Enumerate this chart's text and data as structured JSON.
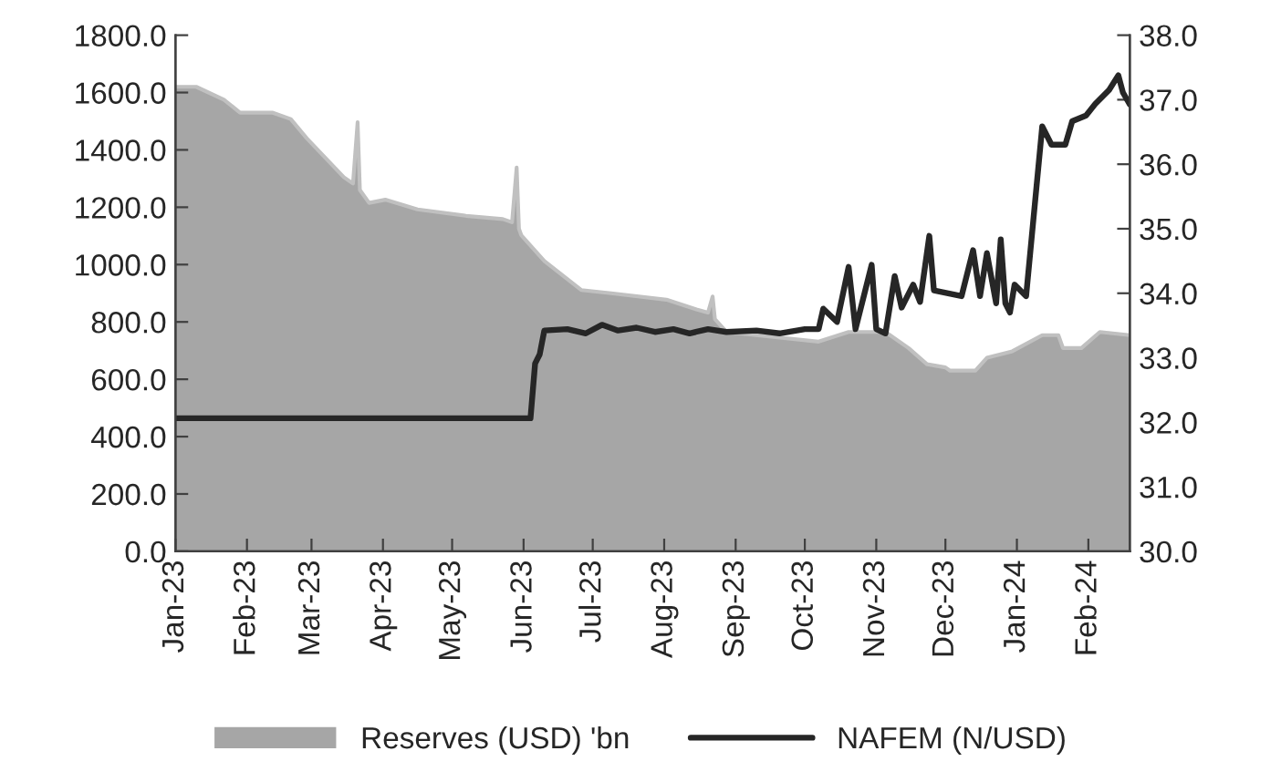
{
  "chart_data": {
    "type": "line",
    "series": [
      {
        "name": "Reserves (USD) 'bn",
        "type": "area",
        "axis": "y2",
        "color": "#a6a6a6",
        "x": [
          "2023-01-01",
          "2023-01-10",
          "2023-01-22",
          "2023-01-29",
          "2023-02-12",
          "2023-02-20",
          "2023-02-27",
          "2023-03-07",
          "2023-03-15",
          "2023-03-19",
          "2023-03-21",
          "2023-03-22",
          "2023-03-26",
          "2023-04-02",
          "2023-04-16",
          "2023-05-07",
          "2023-05-23",
          "2023-05-27",
          "2023-05-29",
          "2023-05-30",
          "2023-05-31",
          "2023-06-10",
          "2023-06-26",
          "2023-07-09",
          "2023-08-02",
          "2023-08-15",
          "2023-08-20",
          "2023-08-22",
          "2023-08-23",
          "2023-08-28",
          "2023-10-07",
          "2023-10-20",
          "2023-11-05",
          "2023-11-15",
          "2023-11-23",
          "2023-12-01",
          "2023-12-03",
          "2023-12-14",
          "2023-12-19",
          "2023-12-30",
          "2024-01-12",
          "2024-01-19",
          "2024-01-21",
          "2024-01-29",
          "2024-02-06",
          "2024-02-19"
        ],
        "values": [
          37.2,
          37.2,
          37.0,
          36.8,
          36.8,
          36.7,
          36.4,
          36.1,
          35.8,
          35.7,
          36.65,
          35.6,
          35.4,
          35.45,
          35.3,
          35.2,
          35.15,
          35.1,
          35.95,
          35.0,
          34.9,
          34.5,
          34.05,
          34.0,
          33.9,
          33.75,
          33.7,
          33.95,
          33.6,
          33.4,
          33.25,
          33.4,
          33.4,
          33.15,
          32.9,
          32.85,
          32.8,
          32.8,
          33.0,
          33.1,
          33.35,
          33.35,
          33.15,
          33.15,
          33.4,
          33.35
        ]
      },
      {
        "name": "NAFEM (N/USD)",
        "axis": "y",
        "color": "#262626",
        "x": [
          "2023-01-01",
          "2023-03-01",
          "2023-05-01",
          "2023-06-04",
          "2023-06-06",
          "2023-06-08",
          "2023-06-10",
          "2023-06-20",
          "2023-06-28",
          "2023-07-05",
          "2023-07-12",
          "2023-07-20",
          "2023-07-28",
          "2023-08-05",
          "2023-08-12",
          "2023-08-20",
          "2023-08-28",
          "2023-09-10",
          "2023-09-20",
          "2023-10-01",
          "2023-10-07",
          "2023-10-09",
          "2023-10-15",
          "2023-10-20",
          "2023-10-23",
          "2023-10-30",
          "2023-11-01",
          "2023-11-05",
          "2023-11-09",
          "2023-11-12",
          "2023-11-17",
          "2023-11-20",
          "2023-11-24",
          "2023-11-26",
          "2023-12-08",
          "2023-12-13",
          "2023-12-16",
          "2023-12-19",
          "2023-12-23",
          "2023-12-25",
          "2023-12-27",
          "2023-12-29",
          "2023-12-31",
          "2024-01-05",
          "2024-01-12",
          "2024-01-16",
          "2024-01-22",
          "2024-01-25",
          "2024-01-31",
          "2024-02-04",
          "2024-02-10",
          "2024-02-14",
          "2024-02-16",
          "2024-02-19"
        ],
        "values": [
          464,
          464,
          464,
          464,
          655,
          687,
          770,
          775,
          760,
          790,
          770,
          780,
          765,
          775,
          760,
          775,
          765,
          770,
          760,
          775,
          775,
          846,
          800,
          992,
          775,
          999,
          775,
          760,
          960,
          850,
          930,
          870,
          1100,
          910,
          890,
          1050,
          890,
          1040,
          865,
          1088,
          865,
          833,
          930,
          890,
          1482,
          1418,
          1418,
          1500,
          1520,
          1560,
          1609,
          1660,
          1600,
          1558
        ]
      }
    ],
    "xlim": [
      "2023-01-01",
      "2024-02-19"
    ],
    "xticks": [
      {
        "value": "2023-01-01",
        "label": "Jan-23"
      },
      {
        "value": "2023-02-01",
        "label": "Feb-23"
      },
      {
        "value": "2023-03-01",
        "label": "Mar-23"
      },
      {
        "value": "2023-04-01",
        "label": "Apr-23"
      },
      {
        "value": "2023-05-01",
        "label": "May-23"
      },
      {
        "value": "2023-06-01",
        "label": "Jun-23"
      },
      {
        "value": "2023-07-01",
        "label": "Jul-23"
      },
      {
        "value": "2023-08-01",
        "label": "Aug-23"
      },
      {
        "value": "2023-09-01",
        "label": "Sep-23"
      },
      {
        "value": "2023-10-01",
        "label": "Oct-23"
      },
      {
        "value": "2023-11-01",
        "label": "Nov-23"
      },
      {
        "value": "2023-12-01",
        "label": "Dec-23"
      },
      {
        "value": "2024-01-01",
        "label": "Jan-24"
      },
      {
        "value": "2024-02-01",
        "label": "Feb-24"
      }
    ],
    "ylim": [
      0,
      1800
    ],
    "yticks": [
      {
        "value": 0,
        "label": "0.0"
      },
      {
        "value": 200,
        "label": "200.0"
      },
      {
        "value": 400,
        "label": "400.0"
      },
      {
        "value": 600,
        "label": "600.0"
      },
      {
        "value": 800,
        "label": "800.0"
      },
      {
        "value": 1000,
        "label": "1000.0"
      },
      {
        "value": 1200,
        "label": "1200.0"
      },
      {
        "value": 1400,
        "label": "1400.0"
      },
      {
        "value": 1600,
        "label": "1600.0"
      },
      {
        "value": 1800,
        "label": "1800.0"
      }
    ],
    "y2lim": [
      30,
      38
    ],
    "y2ticks": [
      {
        "value": 30,
        "label": "30.0"
      },
      {
        "value": 31,
        "label": "31.0"
      },
      {
        "value": 32,
        "label": "32.0"
      },
      {
        "value": 33,
        "label": "33.0"
      },
      {
        "value": 34,
        "label": "34.0"
      },
      {
        "value": 35,
        "label": "35.0"
      },
      {
        "value": 36,
        "label": "36.0"
      },
      {
        "value": 37,
        "label": "37.0"
      },
      {
        "value": 38,
        "label": "38.0"
      }
    ],
    "grid": false,
    "legend": "bottom",
    "line_style": "solid",
    "marker": "none"
  }
}
